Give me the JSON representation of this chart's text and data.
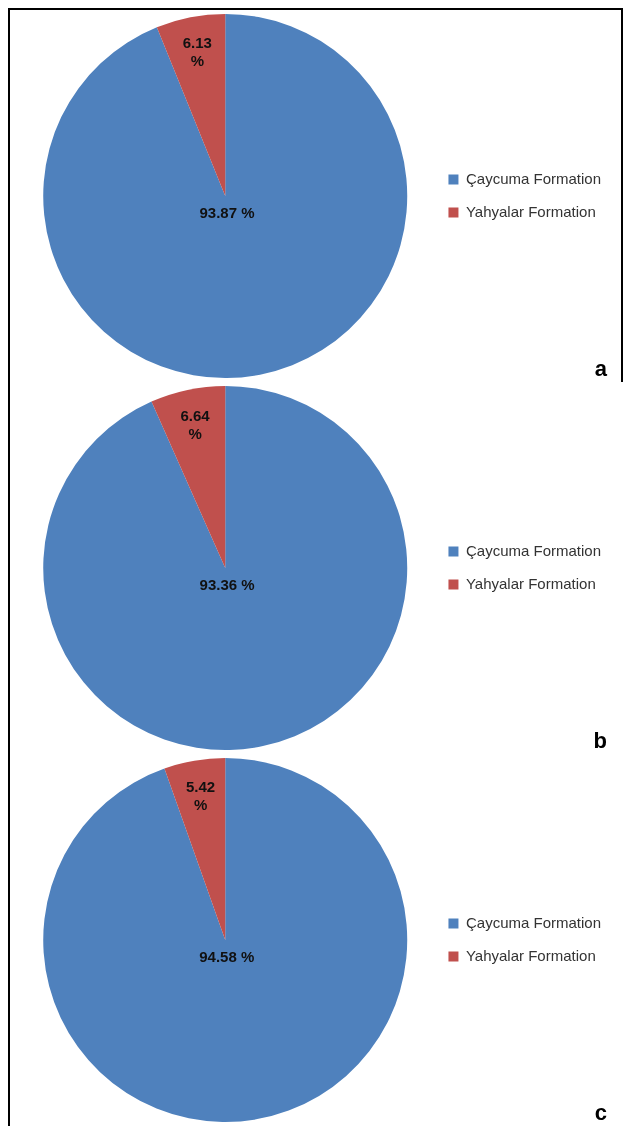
{
  "chart_data": [
    {
      "type": "pie",
      "categories": [
        "Çaycuma Formation",
        "Yahyalar Formation"
      ],
      "values": [
        93.87,
        6.13
      ],
      "colors": [
        "#4f81bd",
        "#c0504d"
      ],
      "value_labels": [
        "93.87 %",
        "6.13 %"
      ],
      "legend": "right",
      "annotations": [
        "a"
      ]
    },
    {
      "type": "pie",
      "categories": [
        "Çaycuma Formation",
        "Yahyalar Formation"
      ],
      "values": [
        93.36,
        6.64
      ],
      "colors": [
        "#4f81bd",
        "#c0504d"
      ],
      "value_labels": [
        "93.36 %",
        "6.64 %"
      ],
      "legend": "right",
      "annotations": [
        "b"
      ]
    },
    {
      "type": "pie",
      "categories": [
        "Çaycuma Formation",
        "Yahyalar Formation"
      ],
      "values": [
        94.58,
        5.42
      ],
      "colors": [
        "#4f81bd",
        "#c0504d"
      ],
      "value_labels": [
        "94.58 %",
        "5.42 %"
      ],
      "legend": "right",
      "annotations": [
        "c"
      ]
    }
  ]
}
